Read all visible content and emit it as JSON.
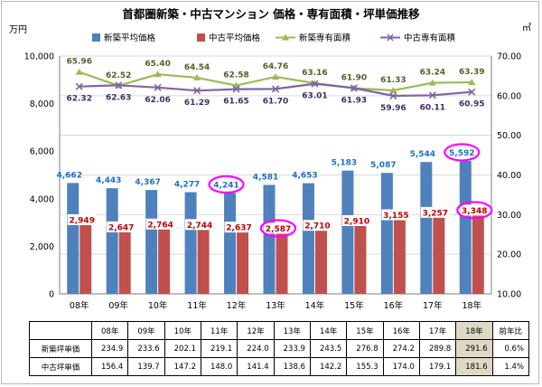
{
  "colors": {
    "new_price": "#4f81bd",
    "used_price": "#c0504d",
    "new_area": "#9bbb59",
    "used_area": "#8064a2",
    "new_label": "#1f6fc4",
    "used_label": "#c00000",
    "new_area_label": "#4f6228",
    "used_area_label": "#3f3160",
    "highlight_ellipse": "#ff00ff",
    "grid": "#d9d9d9",
    "table_highlight": "#ddd9c4"
  },
  "chart_data": {
    "type": "bar",
    "title": "首都圏新築・中古マンション 価格・専有面積・坪単価推移",
    "left_unit": "万円",
    "right_unit": "㎡",
    "categories": [
      "08年",
      "09年",
      "10年",
      "11年",
      "12年",
      "13年",
      "14年",
      "15年",
      "16年",
      "17年",
      "18年"
    ],
    "ylim_left": [
      0,
      10000
    ],
    "yticks_left": [
      "0",
      "2,000",
      "4,000",
      "6,000",
      "8,000",
      "10,000"
    ],
    "ylim_right": [
      10,
      70
    ],
    "yticks_right": [
      "10.00",
      "20.00",
      "30.00",
      "40.00",
      "50.00",
      "60.00",
      "70.00"
    ],
    "grid": true,
    "legend_position": "top",
    "series": [
      {
        "name": "新築平均価格",
        "kind": "bar",
        "axis": "left",
        "values": [
          4662,
          4443,
          4367,
          4277,
          4241,
          4581,
          4653,
          5183,
          5087,
          5544,
          5592
        ],
        "labels": [
          "4,662",
          "4,443",
          "4,367",
          "4,277",
          "4,241",
          "4,581",
          "4,653",
          "5,183",
          "5,087",
          "5,544",
          "5,592"
        ]
      },
      {
        "name": "中古平均価格",
        "kind": "bar",
        "axis": "left",
        "values": [
          2949,
          2647,
          2764,
          2744,
          2637,
          2587,
          2710,
          2910,
          3155,
          3257,
          3348
        ],
        "labels": [
          "2,949",
          "2,647",
          "2,764",
          "2,744",
          "2,637",
          "2,587",
          "2,710",
          "2,910",
          "3,155",
          "3,257",
          "3,348"
        ]
      },
      {
        "name": "新築専有面積",
        "kind": "line",
        "axis": "right",
        "marker": "triangle",
        "values": [
          65.96,
          62.52,
          65.4,
          64.54,
          62.58,
          64.76,
          63.16,
          61.9,
          61.33,
          63.24,
          63.39
        ],
        "labels": [
          "65.96",
          "62.52",
          "65.40",
          "64.54",
          "62.58",
          "64.76",
          "63.16",
          "61.90",
          "61.33",
          "63.24",
          "63.39"
        ]
      },
      {
        "name": "中古専有面積",
        "kind": "line",
        "axis": "right",
        "marker": "x",
        "values": [
          62.32,
          62.63,
          62.06,
          61.29,
          61.65,
          61.7,
          63.01,
          61.93,
          59.96,
          60.11,
          60.95
        ],
        "labels": [
          "62.32",
          "62.63",
          "62.06",
          "61.29",
          "61.65",
          "61.70",
          "63.01",
          "61.93",
          "59.96",
          "60.11",
          "60.95"
        ]
      }
    ],
    "highlights": [
      {
        "series": 0,
        "index": 4
      },
      {
        "series": 1,
        "index": 5
      },
      {
        "series": 0,
        "index": 10
      },
      {
        "series": 1,
        "index": 10
      }
    ]
  },
  "table": {
    "headers": [
      "08年",
      "09年",
      "10年",
      "11年",
      "12年",
      "13年",
      "14年",
      "15年",
      "16年",
      "17年",
      "18年",
      "前年比"
    ],
    "highlight_col": 10,
    "rows": [
      {
        "label": "新築坪単価",
        "values": [
          "234.9",
          "233.6",
          "202.1",
          "219.1",
          "224.0",
          "233.9",
          "243.5",
          "276.8",
          "274.2",
          "289.8",
          "291.6",
          "0.6%"
        ]
      },
      {
        "label": "中古坪単価",
        "values": [
          "156.4",
          "139.7",
          "147.2",
          "148.0",
          "141.4",
          "138.6",
          "142.2",
          "155.3",
          "174.0",
          "179.1",
          "181.6",
          "1.4%"
        ]
      }
    ]
  }
}
